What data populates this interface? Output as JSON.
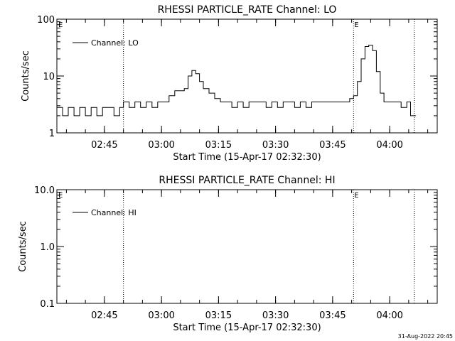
{
  "footer": {
    "timestamp": "31-Aug-2022 20:45"
  },
  "chart_data": [
    {
      "type": "line",
      "title": "RHESSI PARTICLE_RATE Channel: LO",
      "xlabel": "Start Time (15-Apr-17 02:32:30)",
      "ylabel": "Counts/sec",
      "y_scale": "log",
      "ylim": [
        1,
        100
      ],
      "y_ticks": [
        1,
        10,
        100
      ],
      "y_tick_labels": [
        "1",
        "10",
        "100"
      ],
      "xlim": [
        "02:32:30",
        "04:12:30"
      ],
      "x_ticks": [
        "02:45",
        "03:00",
        "03:15",
        "03:30",
        "03:45",
        "04:00"
      ],
      "legend": {
        "position": "top-left",
        "entries": [
          "Channel: LO"
        ]
      },
      "event_lines": [
        {
          "time": "02:50:00",
          "label": ""
        },
        {
          "time": "03:50:30",
          "label": "E"
        },
        {
          "time": "04:06:30",
          "label": ""
        }
      ],
      "corner_label": "E",
      "series": [
        {
          "name": "Channel: LO",
          "x": [
            "02:32:30",
            "02:34:00",
            "02:35:30",
            "02:37:00",
            "02:38:30",
            "02:40:00",
            "02:41:30",
            "02:43:00",
            "02:44:30",
            "02:46:00",
            "02:47:30",
            "02:49:00",
            "02:50:00",
            "02:51:30",
            "02:53:00",
            "02:54:30",
            "02:56:00",
            "02:57:30",
            "02:59:00",
            "03:00:30",
            "03:02:00",
            "03:03:30",
            "03:05:00",
            "03:06:00",
            "03:07:00",
            "03:08:00",
            "03:09:00",
            "03:10:00",
            "03:11:00",
            "03:12:30",
            "03:14:00",
            "03:15:30",
            "03:17:00",
            "03:18:30",
            "03:20:00",
            "03:21:30",
            "03:23:00",
            "03:24:30",
            "03:26:00",
            "03:27:30",
            "03:29:00",
            "03:30:30",
            "03:32:00",
            "03:33:30",
            "03:35:00",
            "03:36:30",
            "03:38:00",
            "03:39:30",
            "03:41:00",
            "03:42:30",
            "03:44:00",
            "03:45:30",
            "03:47:00",
            "03:48:30",
            "03:49:30",
            "03:50:30",
            "03:51:30",
            "03:52:30",
            "03:53:30",
            "03:54:30",
            "03:55:30",
            "03:56:30",
            "03:57:30",
            "03:58:30",
            "04:00:00",
            "04:01:30",
            "04:03:00",
            "04:04:30",
            "04:05:30",
            "04:06:30"
          ],
          "values": [
            2.8,
            2.0,
            2.8,
            2.0,
            2.8,
            2.0,
            2.8,
            2.0,
            2.8,
            2.8,
            2.0,
            2.8,
            3.5,
            2.8,
            3.5,
            2.8,
            3.5,
            2.8,
            3.5,
            3.5,
            4.5,
            5.5,
            5.5,
            6.0,
            10.0,
            12.5,
            11.0,
            8.0,
            6.0,
            5.0,
            4.0,
            3.5,
            3.5,
            2.8,
            3.5,
            2.8,
            3.5,
            3.5,
            3.5,
            2.8,
            3.5,
            2.8,
            3.5,
            3.5,
            2.8,
            3.5,
            2.8,
            3.5,
            3.5,
            3.5,
            3.5,
            3.5,
            3.5,
            3.5,
            4.0,
            4.5,
            8.0,
            20.0,
            33.0,
            35.0,
            28.0,
            12.0,
            5.0,
            3.5,
            3.5,
            3.5,
            2.8,
            3.5,
            2.0,
            2.0
          ]
        }
      ]
    },
    {
      "type": "line",
      "title": "RHESSI PARTICLE_RATE Channel: HI",
      "xlabel": "Start Time (15-Apr-17 02:32:30)",
      "ylabel": "Counts/sec",
      "y_scale": "log",
      "ylim": [
        0.1,
        10
      ],
      "y_ticks": [
        0.1,
        1,
        10
      ],
      "y_tick_labels": [
        "0.1",
        "1.0",
        "10.0"
      ],
      "xlim": [
        "02:32:30",
        "04:12:30"
      ],
      "x_ticks": [
        "02:45",
        "03:00",
        "03:15",
        "03:30",
        "03:45",
        "04:00"
      ],
      "legend": {
        "position": "top-left",
        "entries": [
          "Channel: HI"
        ]
      },
      "event_lines": [
        {
          "time": "02:50:00",
          "label": ""
        },
        {
          "time": "03:50:30",
          "label": "E"
        },
        {
          "time": "04:06:30",
          "label": ""
        }
      ],
      "corner_label": "E",
      "series": [
        {
          "name": "Channel: HI",
          "x": [],
          "values": []
        }
      ]
    }
  ]
}
